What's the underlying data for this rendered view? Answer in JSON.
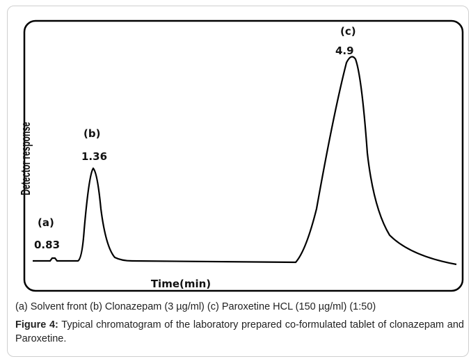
{
  "figure": {
    "y_axis_label": "Detector response",
    "x_axis_label": "Time(min)",
    "peaks": [
      {
        "id": "(a)",
        "time": "0.83"
      },
      {
        "id": "(b)",
        "time": "1.36"
      },
      {
        "id": "(c)",
        "time": "4.9"
      }
    ],
    "legend": "(a) Solvent front (b) Clonazepam (3 µg/ml) (c) Paroxetine HCL (150 µg/ml) (1:50)",
    "caption_label": "Figure 4:",
    "caption_text": "Typical chromatogram of the laboratory prepared co-formulated tablet of clonazepam and Paroxetine."
  }
}
